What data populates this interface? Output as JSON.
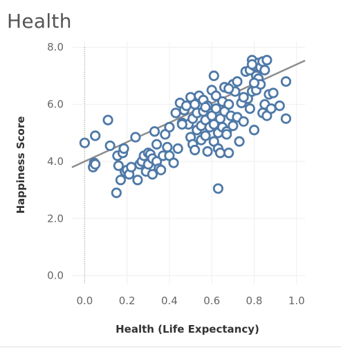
{
  "page": {
    "title": "Health"
  },
  "chart_data": {
    "type": "scatter",
    "title": "Health",
    "xlabel": "Health (Life Expectancy)",
    "ylabel": "Happiness Score",
    "xlim": [
      -0.06,
      1.04
    ],
    "ylim": [
      -0.3,
      8.2
    ],
    "x_ticks": [
      "0.0",
      "0.2",
      "0.4",
      "0.6",
      "0.8",
      "1.0"
    ],
    "y_ticks": [
      "0.0",
      "2.0",
      "4.0",
      "6.0",
      "8.0"
    ],
    "grid": true,
    "zero_reference_line": true,
    "trend_line": {
      "intercept": 4.0,
      "slope": 3.4,
      "x_range": [
        -0.06,
        1.04
      ]
    },
    "marker_color": "#4e79a7",
    "trend_color": "#8c8c8c",
    "points": [
      [
        0.0,
        4.65
      ],
      [
        0.04,
        3.8
      ],
      [
        0.045,
        3.95
      ],
      [
        0.05,
        3.9
      ],
      [
        0.05,
        4.9
      ],
      [
        0.11,
        5.45
      ],
      [
        0.12,
        4.55
      ],
      [
        0.15,
        2.9
      ],
      [
        0.155,
        4.2
      ],
      [
        0.16,
        3.85
      ],
      [
        0.17,
        3.35
      ],
      [
        0.18,
        4.3
      ],
      [
        0.185,
        4.45
      ],
      [
        0.19,
        3.65
      ],
      [
        0.2,
        3.7
      ],
      [
        0.21,
        3.55
      ],
      [
        0.22,
        3.8
      ],
      [
        0.24,
        4.85
      ],
      [
        0.25,
        3.35
      ],
      [
        0.26,
        3.9
      ],
      [
        0.27,
        4.0
      ],
      [
        0.28,
        4.2
      ],
      [
        0.29,
        3.65
      ],
      [
        0.3,
        4.3
      ],
      [
        0.3,
        3.9
      ],
      [
        0.31,
        4.25
      ],
      [
        0.32,
        4.1
      ],
      [
        0.32,
        3.55
      ],
      [
        0.33,
        5.05
      ],
      [
        0.34,
        4.0
      ],
      [
        0.34,
        4.6
      ],
      [
        0.35,
        3.75
      ],
      [
        0.36,
        3.7
      ],
      [
        0.37,
        4.2
      ],
      [
        0.38,
        4.95
      ],
      [
        0.39,
        4.5
      ],
      [
        0.4,
        5.2
      ],
      [
        0.4,
        4.2
      ],
      [
        0.42,
        3.95
      ],
      [
        0.43,
        5.7
      ],
      [
        0.44,
        4.45
      ],
      [
        0.45,
        6.05
      ],
      [
        0.46,
        5.35
      ],
      [
        0.47,
        5.8
      ],
      [
        0.48,
        5.95
      ],
      [
        0.49,
        5.3
      ],
      [
        0.5,
        4.85
      ],
      [
        0.5,
        6.25
      ],
      [
        0.51,
        4.6
      ],
      [
        0.51,
        5.5
      ],
      [
        0.52,
        4.4
      ],
      [
        0.52,
        6.0
      ],
      [
        0.53,
        5.1
      ],
      [
        0.53,
        5.7
      ],
      [
        0.54,
        6.3
      ],
      [
        0.55,
        4.75
      ],
      [
        0.55,
        5.25
      ],
      [
        0.56,
        6.15
      ],
      [
        0.56,
        5.75
      ],
      [
        0.57,
        4.9
      ],
      [
        0.57,
        5.45
      ],
      [
        0.58,
        5.95
      ],
      [
        0.58,
        4.35
      ],
      [
        0.59,
        5.2
      ],
      [
        0.6,
        6.5
      ],
      [
        0.6,
        5.6
      ],
      [
        0.61,
        4.7
      ],
      [
        0.61,
        5.3
      ],
      [
        0.61,
        7.0
      ],
      [
        0.62,
        5.85
      ],
      [
        0.62,
        6.3
      ],
      [
        0.63,
        4.45
      ],
      [
        0.63,
        5.0
      ],
      [
        0.63,
        3.05
      ],
      [
        0.64,
        5.5
      ],
      [
        0.64,
        4.3
      ],
      [
        0.65,
        6.1
      ],
      [
        0.65,
        5.2
      ],
      [
        0.66,
        5.75
      ],
      [
        0.66,
        6.6
      ],
      [
        0.67,
        5.05
      ],
      [
        0.67,
        4.95
      ],
      [
        0.68,
        4.3
      ],
      [
        0.68,
        6.0
      ],
      [
        0.69,
        5.6
      ],
      [
        0.7,
        6.7
      ],
      [
        0.7,
        5.25
      ],
      [
        0.71,
        6.45
      ],
      [
        0.72,
        6.8
      ],
      [
        0.72,
        5.55
      ],
      [
        0.73,
        4.7
      ],
      [
        0.74,
        6.05
      ],
      [
        0.75,
        5.4
      ],
      [
        0.76,
        7.15
      ],
      [
        0.77,
        6.2
      ],
      [
        0.78,
        7.2
      ],
      [
        0.78,
        5.85
      ],
      [
        0.79,
        7.55
      ],
      [
        0.79,
        6.45
      ],
      [
        0.8,
        7.35
      ],
      [
        0.8,
        5.1
      ],
      [
        0.81,
        7.0
      ],
      [
        0.81,
        6.5
      ],
      [
        0.82,
        7.45
      ],
      [
        0.82,
        6.9
      ],
      [
        0.83,
        7.3
      ],
      [
        0.83,
        6.7
      ],
      [
        0.84,
        7.5
      ],
      [
        0.84,
        5.7
      ],
      [
        0.85,
        6.0
      ],
      [
        0.85,
        7.2
      ],
      [
        0.86,
        5.6
      ],
      [
        0.86,
        7.55
      ],
      [
        0.87,
        6.35
      ],
      [
        0.88,
        5.85
      ],
      [
        0.89,
        6.4
      ],
      [
        0.92,
        5.95
      ],
      [
        0.95,
        6.8
      ],
      [
        0.95,
        5.5
      ],
      [
        0.79,
        7.4
      ],
      [
        0.8,
        6.75
      ],
      [
        0.75,
        6.25
      ],
      [
        0.68,
        6.55
      ],
      [
        0.57,
        5.9
      ],
      [
        0.46,
        5.3
      ]
    ]
  }
}
